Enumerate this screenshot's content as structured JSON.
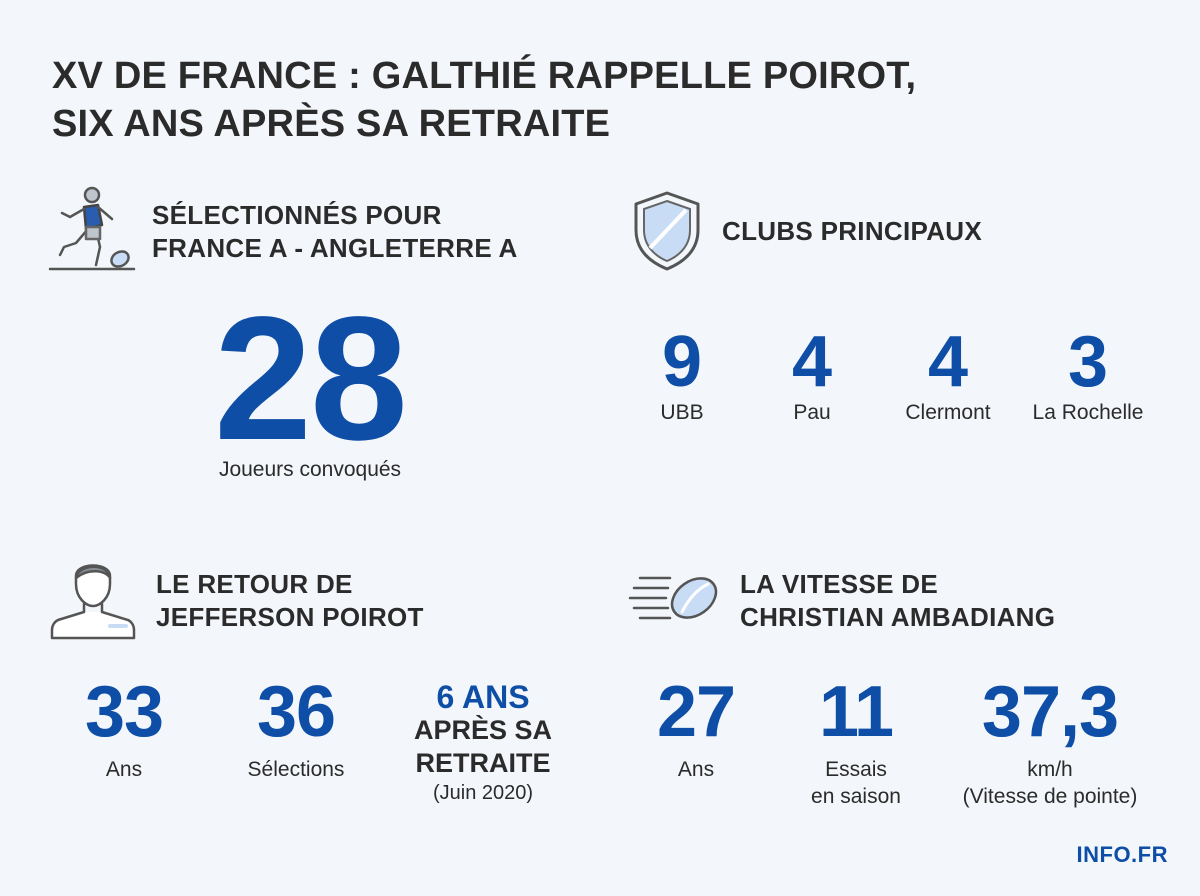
{
  "title": {
    "line1": "XV DE FRANCE : GALTHIÉ RAPPELLE POIROT,",
    "line2": "SIX ANS APRÈS SA RETRAITE"
  },
  "selection": {
    "heading_line1": "SÉLECTIONNÉS POUR",
    "heading_line2": "FRANCE A - ANGLETERRE A",
    "icon": "rugby-player-icon",
    "value": "28",
    "label": "Joueurs convoqués"
  },
  "clubs": {
    "heading": "CLUBS PRINCIPAUX",
    "icon": "shield-icon",
    "items": [
      {
        "value": "9",
        "name": "UBB"
      },
      {
        "value": "4",
        "name": "Pau"
      },
      {
        "value": "4",
        "name": "Clermont"
      },
      {
        "value": "3",
        "name": "La Rochelle"
      }
    ]
  },
  "poirot": {
    "heading_line1": "LE RETOUR DE",
    "heading_line2": "JEFFERSON POIROT",
    "icon": "player-bust-icon",
    "age_value": "33",
    "age_label": "Ans",
    "caps_value": "36",
    "caps_label": "Sélections",
    "retraite_line1": "6 ANS",
    "retraite_line2": "APRÈS SA",
    "retraite_line3": "RETRAITE",
    "retraite_line4": "(Juin 2020)"
  },
  "ambadiang": {
    "heading_line1": "LA VITESSE DE",
    "heading_line2": "CHRISTIAN AMBADIANG",
    "icon": "speeding-ball-icon",
    "age_value": "27",
    "age_label": "Ans",
    "tries_value": "11",
    "tries_label_line1": "Essais",
    "tries_label_line2": "en saison",
    "speed_value": "37,3",
    "speed_label_line1": "km/h",
    "speed_label_line2": "(Vitesse de pointe)"
  },
  "brand": "INFO.FR",
  "colors": {
    "accent": "#0e4ea6",
    "text": "#2b2b2b",
    "background": "#f3f6fa",
    "icon_fill": "#c9dcf5"
  }
}
